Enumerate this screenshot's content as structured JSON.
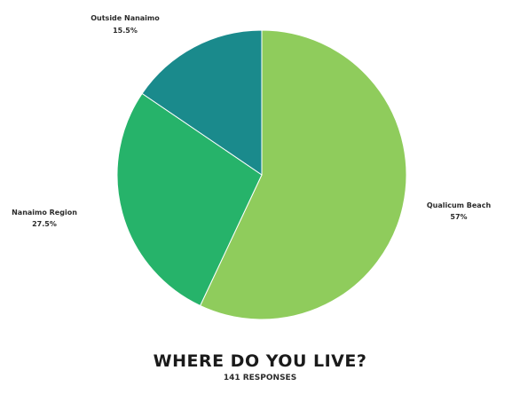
{
  "chart_data": {
    "type": "pie",
    "title": "WHERE DO YOU LIVE?",
    "subtitle": "141 RESPONSES",
    "slices": [
      {
        "name": "Qualicum Beach",
        "value": 57,
        "value_label": "57%",
        "color": "#8fcc5c"
      },
      {
        "name": "Nanaimo Region",
        "value": 27.5,
        "value_label": "27.5%",
        "color": "#26b36a"
      },
      {
        "name": "Outside Nanaimo",
        "value": 15.5,
        "value_label": "15.5%",
        "color": "#1a8a8c"
      }
    ]
  }
}
